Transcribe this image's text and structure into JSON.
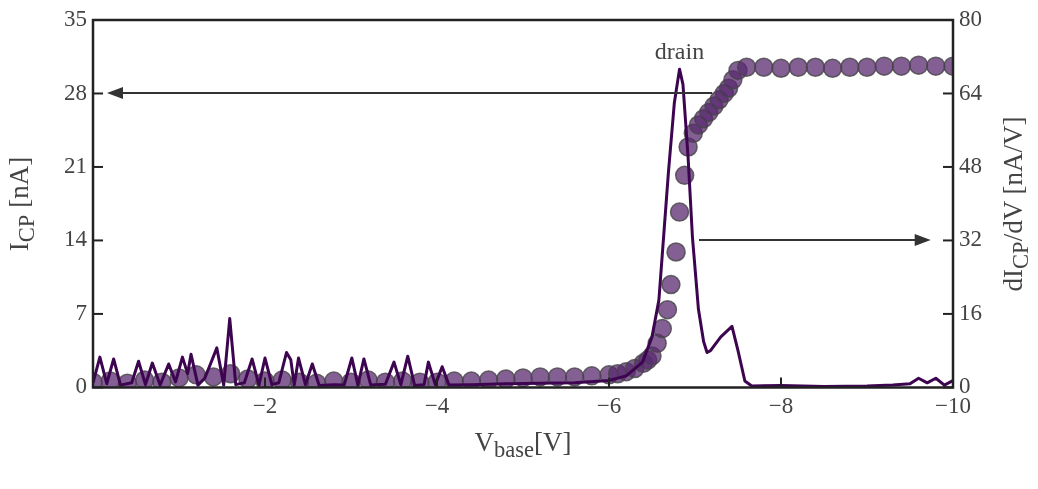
{
  "chart_data": {
    "type": "line",
    "xlabel": "V$_{base}$[V]",
    "ylabel": "I$_{CP}$ [nA]",
    "y2label": "dI$_{CP}$/dV [nA/V]",
    "xlim": [
      0,
      -10
    ],
    "xticks": [
      {
        "value": -2,
        "label": "−2"
      },
      {
        "value": -4,
        "label": "−4"
      },
      {
        "value": -6,
        "label": "−6"
      },
      {
        "value": -8,
        "label": "−8"
      },
      {
        "value": -10,
        "label": "−10"
      }
    ],
    "ylim": [
      0,
      35
    ],
    "yticks": [
      0,
      7,
      14,
      21,
      28,
      35
    ],
    "y2lim": [
      0,
      80
    ],
    "y2ticks": [
      0,
      16,
      32,
      48,
      64,
      80
    ],
    "grid": false,
    "legend": false,
    "annotations": [
      "drain"
    ],
    "series": [
      {
        "type": "scatter",
        "marker": "circle",
        "color": "#5a2a70",
        "x": [
          0,
          -0.2,
          -0.4,
          -0.6,
          -0.8,
          -1.0,
          -1.2,
          -1.4,
          -1.6,
          -1.8,
          -2.0,
          -2.2,
          -2.4,
          -2.6,
          -2.8,
          -3.0,
          -3.2,
          -3.4,
          -3.6,
          -3.8,
          -4.0,
          -4.2,
          -4.4,
          -4.6,
          -4.8,
          -5.0,
          -5.2,
          -5.4,
          -5.6,
          -5.8,
          -6.0,
          -6.1,
          -6.2,
          -6.3,
          -6.4,
          -6.45,
          -6.5,
          -6.56,
          -6.62,
          -6.68,
          -6.72,
          -6.78,
          -6.82,
          -6.88,
          -6.92,
          -6.98,
          -7.04,
          -7.1,
          -7.16,
          -7.22,
          -7.28,
          -7.34,
          -7.39,
          -7.44,
          -7.5,
          -7.6,
          -7.8,
          -8.0,
          -8.2,
          -8.4,
          -8.6,
          -8.8,
          -9.0,
          -9.2,
          -9.4,
          -9.6,
          -9.8,
          -10.0
        ],
        "values": [
          0.5,
          0.6,
          0.4,
          0.7,
          0.5,
          0.9,
          1.2,
          1.0,
          1.3,
          0.8,
          0.6,
          0.7,
          0.5,
          0.4,
          0.6,
          0.5,
          0.7,
          0.5,
          0.6,
          0.5,
          0.5,
          0.6,
          0.6,
          0.7,
          0.8,
          0.9,
          1.0,
          1.0,
          1.0,
          1.1,
          1.2,
          1.3,
          1.5,
          1.8,
          2.3,
          2.6,
          3.0,
          4.2,
          5.6,
          7.4,
          9.8,
          12.9,
          16.7,
          20.2,
          22.9,
          24.2,
          25.0,
          25.6,
          26.2,
          26.8,
          27.4,
          28.0,
          28.5,
          29.3,
          30.2,
          30.5,
          30.5,
          30.4,
          30.5,
          30.5,
          30.4,
          30.5,
          30.5,
          30.6,
          30.6,
          30.7,
          30.6,
          30.6
        ]
      },
      {
        "type": "line",
        "axis": "y2",
        "line_style": "solid",
        "color": "#3d0550",
        "x": [
          0,
          -0.08,
          -0.16,
          -0.24,
          -0.32,
          -0.45,
          -0.53,
          -0.61,
          -0.69,
          -0.78,
          -0.88,
          -0.96,
          -1.04,
          -1.1,
          -1.14,
          -1.22,
          -1.3,
          -1.44,
          -1.52,
          -1.59,
          -1.66,
          -1.76,
          -1.85,
          -1.93,
          -2.0,
          -2.08,
          -2.16,
          -2.25,
          -2.3,
          -2.34,
          -2.39,
          -2.47,
          -2.55,
          -2.63,
          -2.8,
          -2.92,
          -3.01,
          -3.08,
          -3.15,
          -3.23,
          -3.4,
          -3.5,
          -3.58,
          -3.66,
          -3.74,
          -3.85,
          -3.9,
          -3.98,
          -4.06,
          -4.14,
          -4.4,
          -4.8,
          -5.2,
          -5.6,
          -6.0,
          -6.2,
          -6.39,
          -6.5,
          -6.58,
          -6.69,
          -6.76,
          -6.82,
          -6.86,
          -6.92,
          -6.97,
          -7.04,
          -7.1,
          -7.14,
          -7.18,
          -7.3,
          -7.43,
          -7.5,
          -7.58,
          -7.66,
          -8.0,
          -8.5,
          -9.0,
          -9.3,
          -9.5,
          -9.6,
          -9.7,
          -9.8,
          -9.9,
          -10.0
        ],
        "values": [
          1,
          6.6,
          0.8,
          6.2,
          0.5,
          1,
          5.7,
          0.6,
          5.3,
          0.5,
          5.1,
          1.2,
          6.6,
          3,
          7.2,
          0.5,
          2,
          8.6,
          0.5,
          15,
          0.6,
          1,
          6.2,
          0.5,
          6.4,
          0.6,
          1,
          7.6,
          6,
          0.5,
          6.4,
          0.6,
          5.1,
          0.4,
          0.6,
          0.5,
          6.4,
          0.5,
          6.2,
          0.5,
          0.7,
          5.5,
          0.6,
          6.8,
          0.4,
          0.6,
          5.5,
          0.6,
          4.5,
          0.5,
          0.6,
          0.8,
          0.9,
          1.0,
          1.5,
          2.5,
          5.5,
          11,
          19,
          46.6,
          62,
          69.3,
          66,
          50,
          32.8,
          17,
          10,
          7.6,
          8,
          11,
          13.3,
          8,
          1.4,
          0.3,
          0.4,
          0.2,
          0.3,
          0.5,
          0.8,
          2,
          1,
          2,
          0.5,
          1.5
        ]
      }
    ]
  }
}
